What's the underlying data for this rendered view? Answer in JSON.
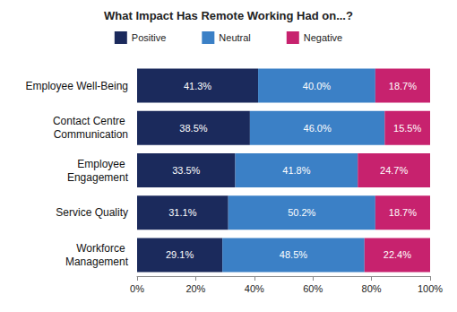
{
  "chart_data": {
    "type": "bar",
    "title": "What Impact Has Remote Working Had on...?",
    "orientation": "horizontal",
    "stacked": true,
    "data_labels": true,
    "grid": false,
    "legend": "top",
    "categories": [
      "Employee Well-Being",
      "Contact Centre Communication",
      "Employee Engagement",
      "Service Quality",
      "Workforce Management"
    ],
    "series": [
      {
        "name": "Positive",
        "color": "#1b2a5c",
        "values": [
          41.3,
          38.5,
          33.5,
          31.1,
          29.1
        ],
        "value_labels": [
          "41.3%",
          "38.5%",
          "33.5%",
          "31.1%",
          "29.1%"
        ]
      },
      {
        "name": "Neutral",
        "color": "#3b80c6",
        "values": [
          40.0,
          46.0,
          41.8,
          50.2,
          48.5
        ],
        "value_labels": [
          "40.0%",
          "46.0%",
          "41.8%",
          "50.2%",
          "48.5%"
        ]
      },
      {
        "name": "Negative",
        "color": "#c7226e",
        "values": [
          18.7,
          15.5,
          24.7,
          18.7,
          22.4
        ],
        "value_labels": [
          "18.7%",
          "15.5%",
          "24.7%",
          "18.7%",
          "22.4%"
        ]
      }
    ],
    "xlim": [
      0,
      100
    ],
    "xticks": [
      {
        "value": 0,
        "label": "0%"
      },
      {
        "value": 20,
        "label": "20%"
      },
      {
        "value": 40,
        "label": "40%"
      },
      {
        "value": 60,
        "label": "60%"
      },
      {
        "value": 80,
        "label": "80%"
      },
      {
        "value": 100,
        "label": "100%"
      }
    ]
  }
}
